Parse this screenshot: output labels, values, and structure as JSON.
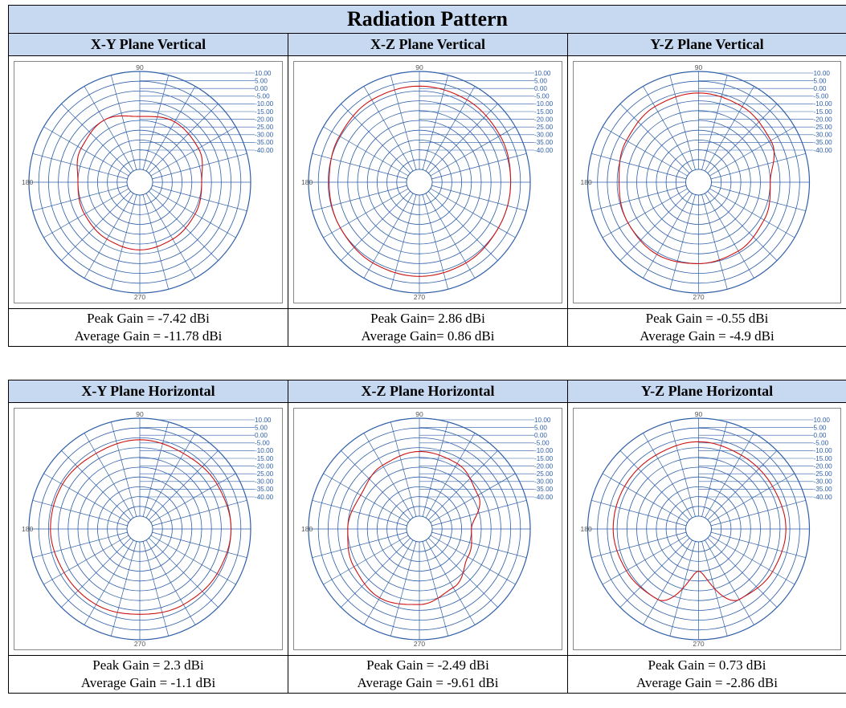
{
  "title": "Radiation Pattern",
  "colors": {
    "header_bg": "#c6d9f1",
    "grid": "#2f5fa8",
    "trace": "#cc1111"
  },
  "sections": [
    {
      "panels": [
        {
          "heading": "X-Y Plane Vertical",
          "peak": "Peak Gain = -7.42 dBi",
          "average": "Average Gain = -11.78 dBi"
        },
        {
          "heading": "X-Z Plane Vertical",
          "peak": "Peak Gain= 2.86 dBi",
          "average": "Average Gain= 0.86 dBi"
        },
        {
          "heading": "Y-Z Plane Vertical",
          "peak": "Peak Gain = -0.55 dBi",
          "average": "Average Gain = -4.9 dBi"
        }
      ]
    },
    {
      "panels": [
        {
          "heading": "X-Y Plane Horizontal",
          "peak": "Peak Gain = 2.3 dBi",
          "average": "Average Gain = -1.1 dBi"
        },
        {
          "heading": "X-Z Plane Horizontal",
          "peak": "Peak Gain = -2.49 dBi",
          "average": "Average Gain = -9.61 dBi"
        },
        {
          "heading": "Y-Z Plane Horizontal",
          "peak": "Peak Gain = 0.73 dBi",
          "average": "Average Gain = -2.86 dBi"
        }
      ]
    }
  ],
  "chart_data": [
    {
      "type": "polar",
      "name": "X-Y Plane Vertical",
      "angle_labels": [
        "90",
        "180",
        "270"
      ],
      "radial_ticks": [
        "10.00",
        "5.00",
        "0.00",
        "-5.00",
        "-10.00",
        "-15.00",
        "-20.00",
        "-25.00",
        "-30.00",
        "-35.00",
        "-40.00"
      ],
      "rlim": [
        -40,
        10
      ],
      "angles": [
        0,
        30,
        60,
        90,
        120,
        150,
        180,
        210,
        240,
        270,
        300,
        330
      ],
      "values": [
        -15,
        -12,
        -11,
        -13,
        -10,
        -12,
        -15,
        -14,
        -13,
        -12,
        -13,
        -14
      ]
    },
    {
      "type": "polar",
      "name": "X-Z Plane Vertical",
      "angle_labels": [
        "90",
        "180",
        "270"
      ],
      "radial_ticks": [
        "10.00",
        "5.00",
        "0.00",
        "-5.00",
        "-10.00",
        "-15.00",
        "-20.00",
        "-25.00",
        "-30.00",
        "-35.00",
        "-40.00"
      ],
      "rlim": [
        -40,
        10
      ],
      "angles": [
        0,
        30,
        60,
        90,
        120,
        150,
        180,
        210,
        240,
        270,
        300,
        330
      ],
      "values": [
        0,
        1,
        2,
        2.5,
        2,
        0.5,
        -0.5,
        0,
        1,
        1.5,
        1,
        0
      ]
    },
    {
      "type": "polar",
      "name": "Y-Z Plane Vertical",
      "angle_labels": [
        "90",
        "180",
        "270"
      ],
      "radial_ticks": [
        "10.00",
        "5.00",
        "0.00",
        "-5.00",
        "-10.00",
        "-15.00",
        "-20.00",
        "-25.00",
        "-30.00",
        "-35.00",
        "-40.00"
      ],
      "rlim": [
        -40,
        10
      ],
      "angles": [
        0,
        30,
        60,
        90,
        120,
        150,
        180,
        210,
        240,
        270,
        300,
        330
      ],
      "values": [
        -10,
        -4,
        -2,
        -1,
        -2,
        -4,
        -6,
        -5,
        -4,
        -5,
        -6,
        -8
      ]
    },
    {
      "type": "polar",
      "name": "X-Y Plane Horizontal",
      "angle_labels": [
        "90",
        "180",
        "270"
      ],
      "radial_ticks": [
        "10.00",
        "5.00",
        "0.00",
        "-5.00",
        "-10.00",
        "-15.00",
        "-20.00",
        "-25.00",
        "-30.00",
        "-35.00",
        "-40.00"
      ],
      "rlim": [
        -40,
        10
      ],
      "angles": [
        0,
        30,
        60,
        90,
        120,
        150,
        180,
        210,
        240,
        270,
        300,
        330
      ],
      "values": [
        0,
        -1,
        -2,
        -1,
        -2,
        -1,
        -1,
        -2,
        -2,
        -3,
        -2,
        -1
      ]
    },
    {
      "type": "polar",
      "name": "X-Z Plane Horizontal",
      "angle_labels": [
        "90",
        "180",
        "270"
      ],
      "radial_ticks": [
        "10.00",
        "5.00",
        "0.00",
        "-5.00",
        "-10.00",
        "-15.00",
        "-20.00",
        "-25.00",
        "-30.00",
        "-35.00",
        "-40.00"
      ],
      "rlim": [
        -40,
        10
      ],
      "angles": [
        0,
        30,
        60,
        90,
        120,
        150,
        180,
        210,
        240,
        270,
        300,
        330
      ],
      "values": [
        -20,
        -12,
        -8,
        -7,
        -9,
        -12,
        -10,
        -8,
        -6,
        -8,
        -12,
        -18
      ]
    },
    {
      "type": "polar",
      "name": "Y-Z Plane Horizontal",
      "angle_labels": [
        "90",
        "180",
        "270"
      ],
      "radial_ticks": [
        "10.00",
        "5.00",
        "0.00",
        "-5.00",
        "-10.00",
        "-15.00",
        "-20.00",
        "-25.00",
        "-30.00",
        "-35.00",
        "-40.00"
      ],
      "rlim": [
        -40,
        10
      ],
      "angles": [
        0,
        30,
        60,
        90,
        120,
        150,
        180,
        210,
        240,
        270,
        300,
        330
      ],
      "values": [
        -2,
        -3,
        -3,
        -2,
        -3,
        -3,
        -3,
        -4,
        -5,
        -25,
        -5,
        -3
      ]
    }
  ]
}
